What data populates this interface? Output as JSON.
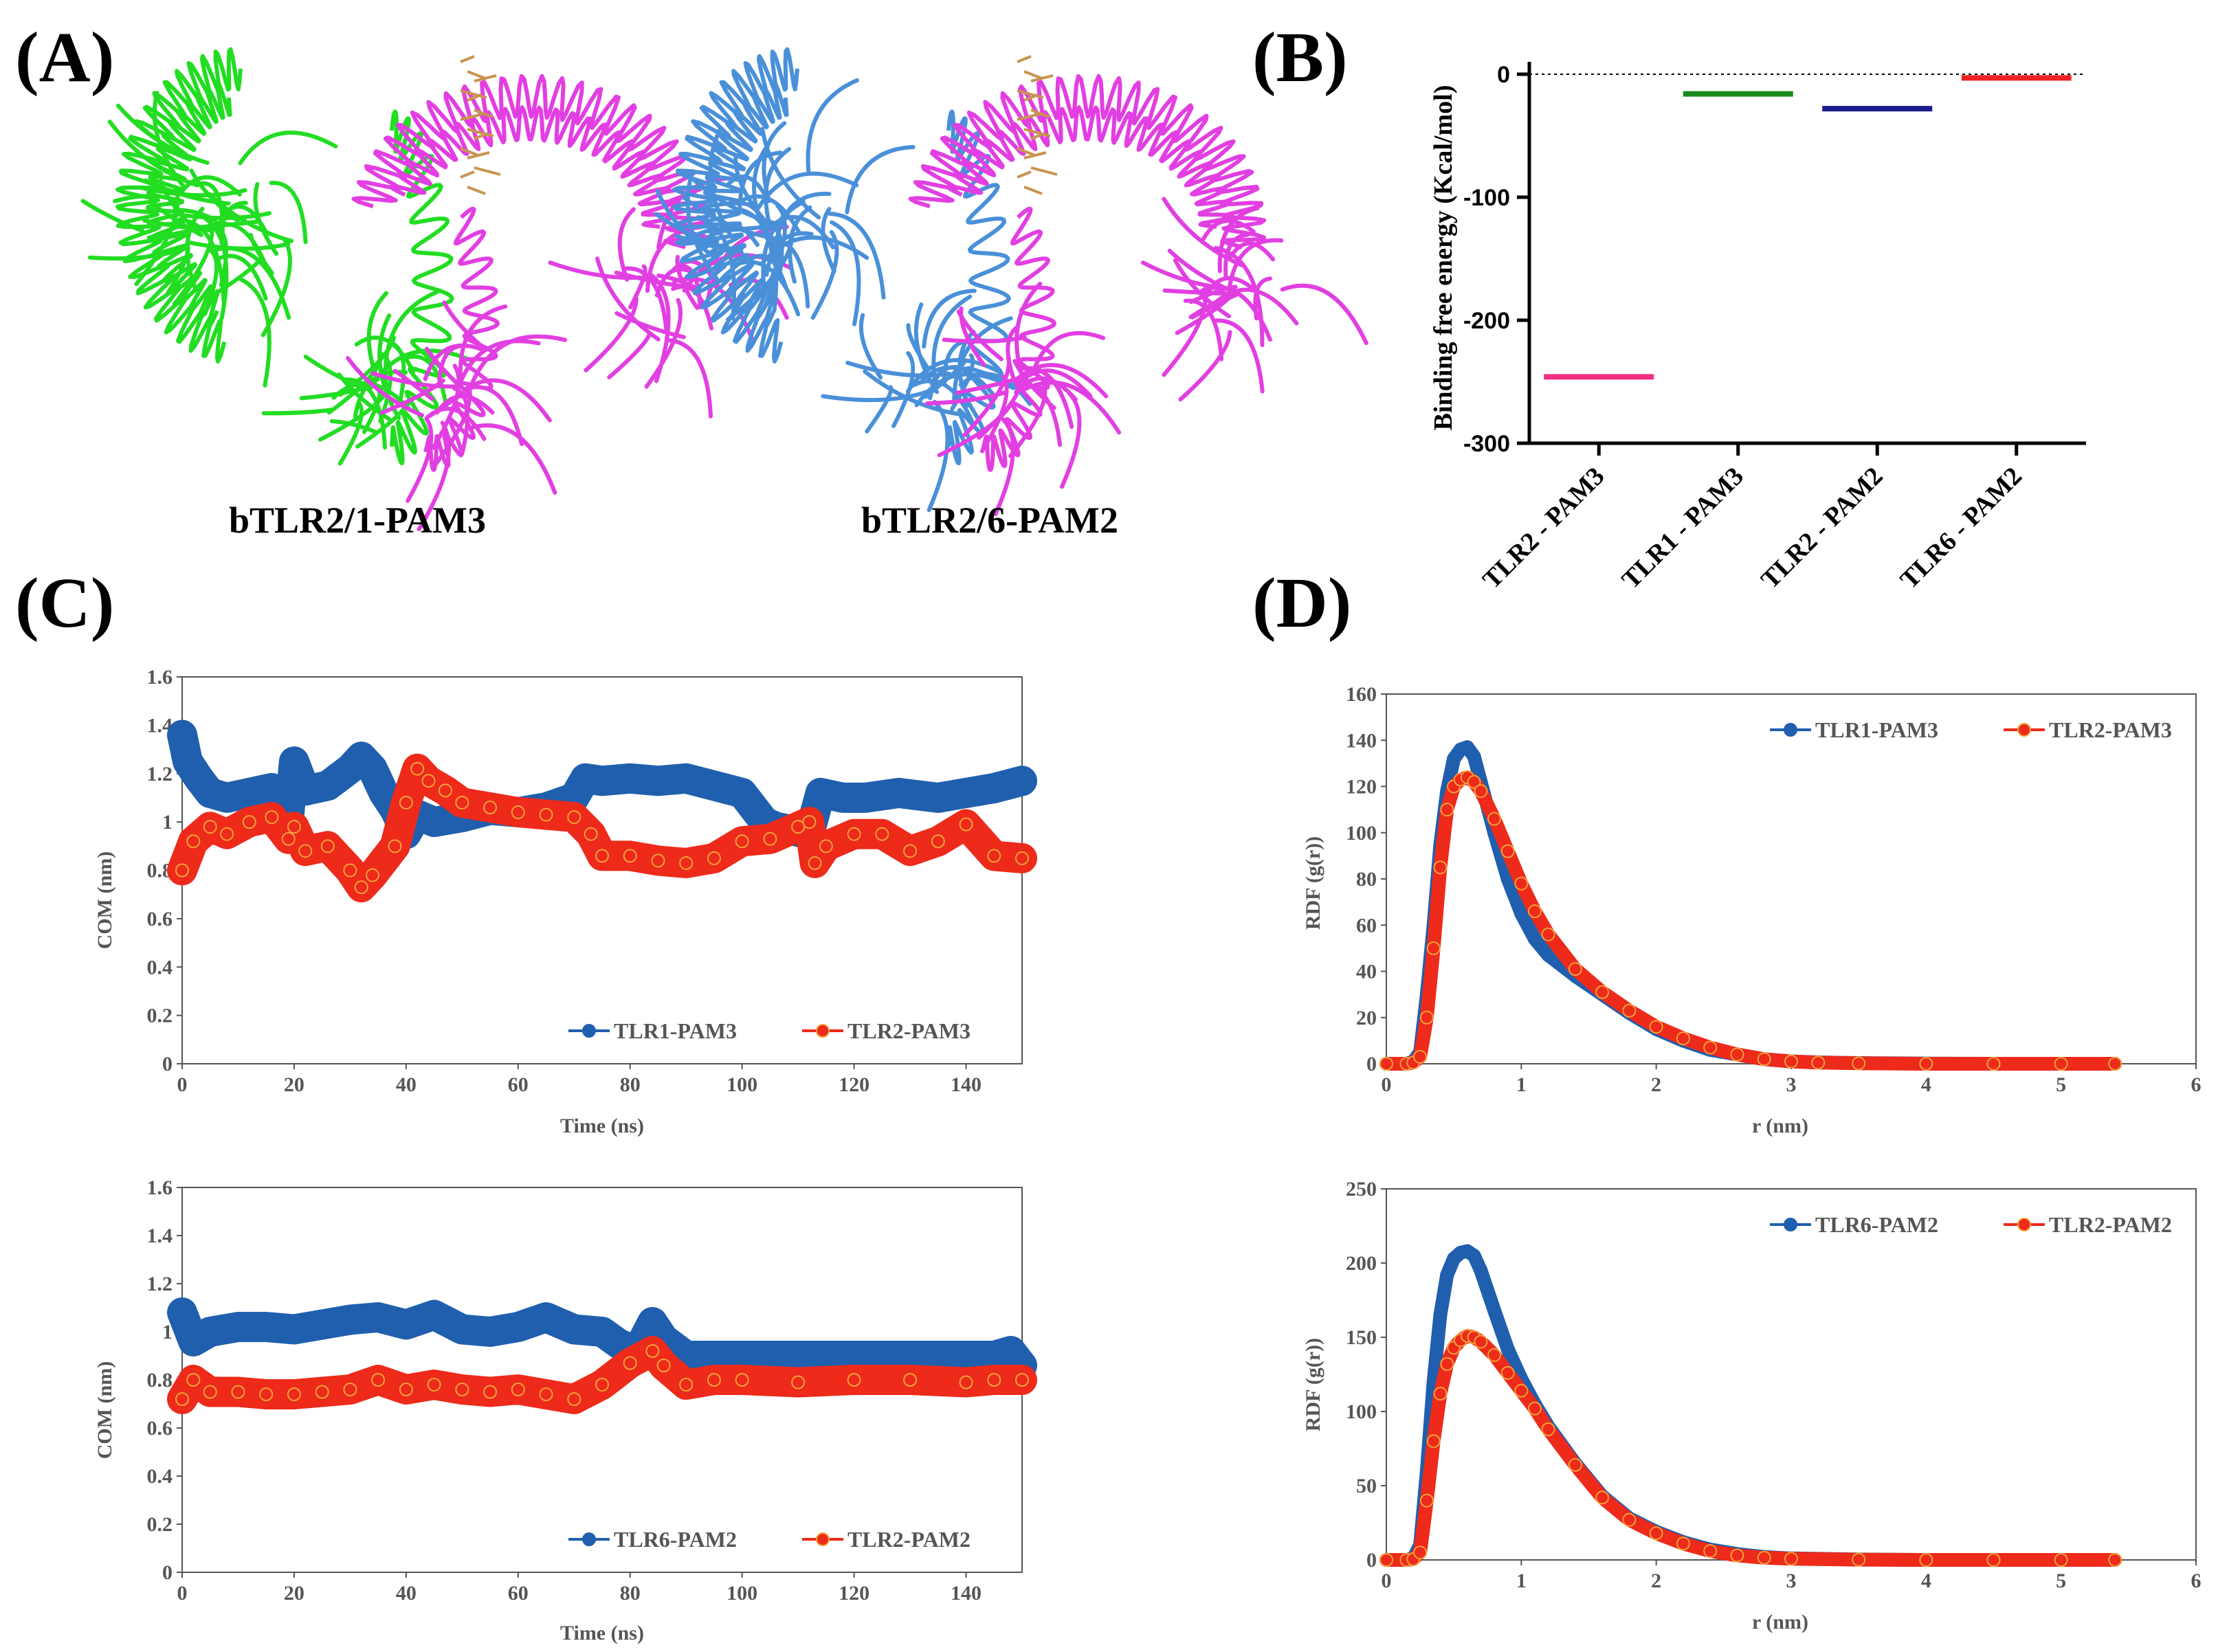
{
  "panels": {
    "A": {
      "label": "(A)",
      "structures": [
        {
          "caption": "bTLR2/1-PAM3",
          "partner_color": "#22dd22",
          "tlr2_color": "#e23fe2"
        },
        {
          "caption": "bTLR2/6-PAM2",
          "partner_color": "#4a90d9",
          "tlr2_color": "#e23fe2"
        }
      ]
    },
    "B": {
      "label": "(B)"
    },
    "C": {
      "label": "(C)"
    },
    "D": {
      "label": "(D)"
    }
  },
  "chart_data": [
    {
      "id": "B",
      "type": "scatter",
      "ylabel": "Binding free energy (Kcal/mol)",
      "ylim": [
        -300,
        0
      ],
      "yticks": [
        0,
        -100,
        -200,
        -300
      ],
      "categories": [
        "TLR2 - PAM3",
        "TLR1 - PAM3",
        "TLR2 - PAM2",
        "TLR6 - PAM2"
      ],
      "values": [
        -246,
        -16,
        -28,
        -3
      ],
      "colors": [
        "#ee2f7f",
        "#1a8a1a",
        "#1a1a8a",
        "#ee2222"
      ],
      "reference_line": 0
    },
    {
      "id": "C-top",
      "type": "line",
      "xlabel": "Time (ns)",
      "ylabel": "COM (nm)",
      "xlim": [
        0,
        150
      ],
      "ylim": [
        0,
        1.6
      ],
      "xticks": [
        0,
        20,
        40,
        60,
        80,
        100,
        120,
        140
      ],
      "yticks": [
        0,
        0.2,
        0.4,
        0.6,
        0.8,
        1,
        1.2,
        1.4,
        1.6
      ],
      "legend_position": "bottom-right",
      "series": [
        {
          "name": "TLR1-PAM3",
          "color": "#1f5fae",
          "x": [
            0,
            1,
            3,
            5,
            8,
            12,
            16,
            18,
            19,
            20,
            22,
            26,
            30,
            32,
            34,
            36,
            38,
            40,
            42,
            45,
            50,
            55,
            60,
            65,
            70,
            72,
            75,
            80,
            85,
            90,
            95,
            100,
            104,
            106,
            110,
            112,
            114,
            118,
            122,
            128,
            135,
            140,
            145,
            150
          ],
          "values": [
            1.36,
            1.25,
            1.18,
            1.12,
            1.1,
            1.12,
            1.14,
            1.1,
            1.0,
            1.25,
            1.13,
            1.15,
            1.22,
            1.27,
            1.22,
            1.12,
            1.05,
            0.95,
            1.03,
            1.0,
            1.02,
            1.05,
            1.04,
            1.06,
            1.1,
            1.18,
            1.17,
            1.18,
            1.17,
            1.18,
            1.15,
            1.12,
            1.0,
            0.98,
            0.96,
            0.95,
            1.12,
            1.1,
            1.1,
            1.12,
            1.1,
            1.12,
            1.14,
            1.17
          ]
        },
        {
          "name": "TLR2-PAM3",
          "color": "#ee2a1a",
          "x": [
            0,
            2,
            5,
            8,
            12,
            16,
            19,
            20,
            22,
            26,
            30,
            32,
            34,
            38,
            40,
            42,
            44,
            47,
            50,
            55,
            60,
            65,
            70,
            73,
            75,
            80,
            85,
            90,
            95,
            100,
            105,
            110,
            112,
            113,
            115,
            120,
            125,
            130,
            135,
            140,
            145,
            150
          ],
          "values": [
            0.8,
            0.92,
            0.98,
            0.95,
            1.0,
            1.02,
            0.93,
            0.98,
            0.88,
            0.9,
            0.8,
            0.73,
            0.78,
            0.9,
            1.08,
            1.22,
            1.17,
            1.13,
            1.08,
            1.06,
            1.04,
            1.03,
            1.02,
            0.95,
            0.86,
            0.86,
            0.84,
            0.83,
            0.85,
            0.92,
            0.93,
            0.98,
            1.0,
            0.83,
            0.9,
            0.95,
            0.95,
            0.88,
            0.92,
            0.99,
            0.86,
            0.85
          ]
        }
      ]
    },
    {
      "id": "C-bottom",
      "type": "line",
      "xlabel": "Time (ns)",
      "ylabel": "COM (nm)",
      "xlim": [
        0,
        150
      ],
      "ylim": [
        0,
        1.6
      ],
      "xticks": [
        0,
        20,
        40,
        60,
        80,
        100,
        120,
        140
      ],
      "yticks": [
        0,
        0.2,
        0.4,
        0.6,
        0.8,
        1,
        1.2,
        1.4,
        1.6
      ],
      "legend_position": "bottom-right",
      "series": [
        {
          "name": "TLR6-PAM2",
          "color": "#1f5fae",
          "x": [
            0,
            2,
            5,
            10,
            15,
            20,
            25,
            30,
            35,
            40,
            45,
            50,
            55,
            60,
            65,
            70,
            75,
            78,
            80,
            82,
            84,
            86,
            90,
            95,
            100,
            110,
            120,
            130,
            140,
            145,
            148,
            150
          ],
          "values": [
            1.08,
            0.96,
            1.0,
            1.02,
            1.02,
            1.01,
            1.03,
            1.05,
            1.06,
            1.03,
            1.07,
            1.01,
            1.0,
            1.02,
            1.06,
            1.01,
            1.0,
            0.95,
            0.93,
            0.95,
            1.04,
            0.97,
            0.9,
            0.9,
            0.9,
            0.9,
            0.9,
            0.9,
            0.9,
            0.9,
            0.92,
            0.86
          ]
        },
        {
          "name": "TLR2-PAM2",
          "color": "#ee2a1a",
          "x": [
            0,
            2,
            5,
            10,
            15,
            20,
            25,
            30,
            35,
            40,
            45,
            50,
            55,
            60,
            65,
            70,
            75,
            80,
            84,
            86,
            90,
            95,
            100,
            110,
            120,
            130,
            140,
            145,
            150
          ],
          "values": [
            0.72,
            0.8,
            0.75,
            0.75,
            0.74,
            0.74,
            0.75,
            0.76,
            0.8,
            0.76,
            0.78,
            0.76,
            0.75,
            0.76,
            0.74,
            0.72,
            0.78,
            0.87,
            0.92,
            0.86,
            0.78,
            0.8,
            0.8,
            0.79,
            0.8,
            0.8,
            0.79,
            0.8,
            0.8
          ]
        }
      ]
    },
    {
      "id": "D-top",
      "type": "line",
      "xlabel": "r (nm)",
      "ylabel": "RDF (g(r))",
      "xlim": [
        0,
        6
      ],
      "ylim": [
        0,
        160
      ],
      "xticks": [
        0,
        1,
        2,
        3,
        4,
        5,
        6
      ],
      "yticks": [
        0,
        20,
        40,
        60,
        80,
        100,
        120,
        140,
        160
      ],
      "legend_position": "top-right",
      "series": [
        {
          "name": "TLR1-PAM3",
          "color": "#1f5fae",
          "x": [
            0,
            0.15,
            0.2,
            0.25,
            0.3,
            0.35,
            0.4,
            0.45,
            0.5,
            0.55,
            0.6,
            0.65,
            0.7,
            0.8,
            0.9,
            1.0,
            1.1,
            1.2,
            1.4,
            1.6,
            1.8,
            2.0,
            2.2,
            2.4,
            2.6,
            2.8,
            3.0,
            3.2,
            3.5,
            4.0,
            4.5,
            5.0,
            5.4
          ],
          "values": [
            0,
            0,
            1,
            5,
            30,
            60,
            95,
            118,
            132,
            136,
            137,
            133,
            122,
            100,
            80,
            65,
            54,
            47,
            38,
            30,
            22,
            15,
            10,
            6,
            4,
            2,
            1,
            0.6,
            0.3,
            0.1,
            0,
            0,
            0
          ]
        },
        {
          "name": "TLR2-PAM3",
          "color": "#ee2a1a",
          "x": [
            0,
            0.15,
            0.2,
            0.25,
            0.3,
            0.35,
            0.4,
            0.45,
            0.5,
            0.55,
            0.6,
            0.65,
            0.7,
            0.8,
            0.9,
            1.0,
            1.1,
            1.2,
            1.4,
            1.6,
            1.8,
            2.0,
            2.2,
            2.4,
            2.6,
            2.8,
            3.0,
            3.2,
            3.5,
            4.0,
            4.5,
            5.0,
            5.4
          ],
          "values": [
            0,
            0,
            0.5,
            3,
            20,
            50,
            85,
            110,
            120,
            123,
            124,
            122,
            118,
            106,
            92,
            78,
            66,
            56,
            41,
            31,
            23,
            16,
            11,
            7,
            4,
            2,
            1,
            0.5,
            0.2,
            0,
            0,
            0,
            0
          ]
        }
      ]
    },
    {
      "id": "D-bottom",
      "type": "line",
      "xlabel": "r (nm)",
      "ylabel": "RDF (g(r))",
      "xlim": [
        0,
        6
      ],
      "ylim": [
        0,
        250
      ],
      "xticks": [
        0,
        1,
        2,
        3,
        4,
        5,
        6
      ],
      "yticks": [
        0,
        50,
        100,
        150,
        200,
        250
      ],
      "legend_position": "top-right",
      "series": [
        {
          "name": "TLR6-PAM2",
          "color": "#1f5fae",
          "x": [
            0,
            0.15,
            0.2,
            0.25,
            0.3,
            0.35,
            0.4,
            0.45,
            0.5,
            0.55,
            0.6,
            0.65,
            0.7,
            0.8,
            0.9,
            1.0,
            1.1,
            1.2,
            1.4,
            1.6,
            1.8,
            2.0,
            2.2,
            2.4,
            2.6,
            2.8,
            3.0,
            3.5,
            4.0,
            4.5,
            5.0,
            5.4
          ],
          "values": [
            0,
            0,
            1,
            10,
            60,
            120,
            165,
            192,
            203,
            207,
            208,
            205,
            195,
            168,
            142,
            122,
            105,
            90,
            65,
            43,
            28,
            19,
            12,
            7,
            4,
            2,
            1,
            0.3,
            0,
            0,
            0,
            0
          ]
        },
        {
          "name": "TLR2-PAM2",
          "color": "#ee2a1a",
          "x": [
            0,
            0.15,
            0.2,
            0.25,
            0.3,
            0.35,
            0.4,
            0.45,
            0.5,
            0.55,
            0.6,
            0.65,
            0.7,
            0.8,
            0.9,
            1.0,
            1.1,
            1.2,
            1.4,
            1.6,
            1.8,
            2.0,
            2.2,
            2.4,
            2.6,
            2.8,
            3.0,
            3.5,
            4.0,
            4.5,
            5.0,
            5.4
          ],
          "values": [
            0,
            0,
            0.5,
            5,
            40,
            80,
            112,
            132,
            143,
            148,
            151,
            150,
            147,
            138,
            126,
            114,
            102,
            88,
            64,
            42,
            27,
            18,
            11,
            6,
            3,
            1.5,
            0.8,
            0.2,
            0,
            0,
            0,
            0
          ]
        }
      ]
    }
  ]
}
